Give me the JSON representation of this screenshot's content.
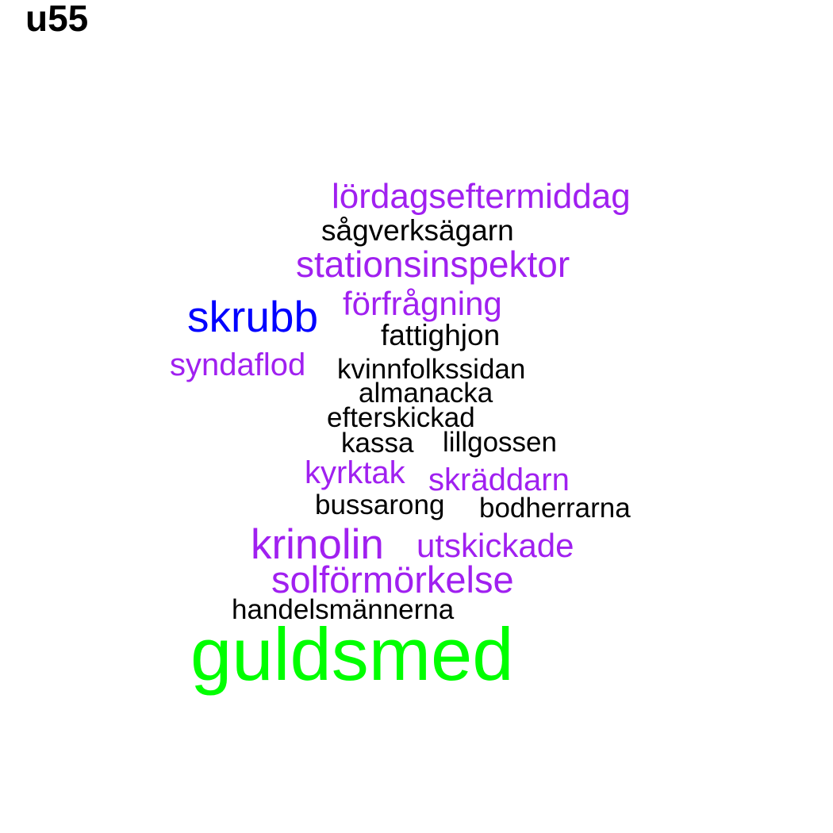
{
  "title": "u55",
  "cloud": {
    "words": [
      {
        "text": "lördagseftermiddag",
        "color": "#a020f0"
      },
      {
        "text": "sågverksägarn",
        "color": "#000000"
      },
      {
        "text": "stationsinspektor",
        "color": "#a020f0"
      },
      {
        "text": "skrubb",
        "color": "#0000ff"
      },
      {
        "text": "förfrågning",
        "color": "#a020f0"
      },
      {
        "text": "fattighjon",
        "color": "#000000"
      },
      {
        "text": "syndaflod",
        "color": "#a020f0"
      },
      {
        "text": "kvinnfolkssidan",
        "color": "#000000"
      },
      {
        "text": "almanacka",
        "color": "#000000"
      },
      {
        "text": "efterskickad",
        "color": "#000000"
      },
      {
        "text": "kassa",
        "color": "#000000"
      },
      {
        "text": "lillgossen",
        "color": "#000000"
      },
      {
        "text": "kyrktak",
        "color": "#a020f0"
      },
      {
        "text": "skräddarn",
        "color": "#a020f0"
      },
      {
        "text": "bussarong",
        "color": "#000000"
      },
      {
        "text": "bodherrarna",
        "color": "#000000"
      },
      {
        "text": "krinolin",
        "color": "#a020f0"
      },
      {
        "text": "utskickade",
        "color": "#a020f0"
      },
      {
        "text": "solförmörkelse",
        "color": "#a020f0"
      },
      {
        "text": "handelsmännerna",
        "color": "#000000"
      },
      {
        "text": "guldsmed",
        "color": "#00ff00"
      }
    ]
  }
}
